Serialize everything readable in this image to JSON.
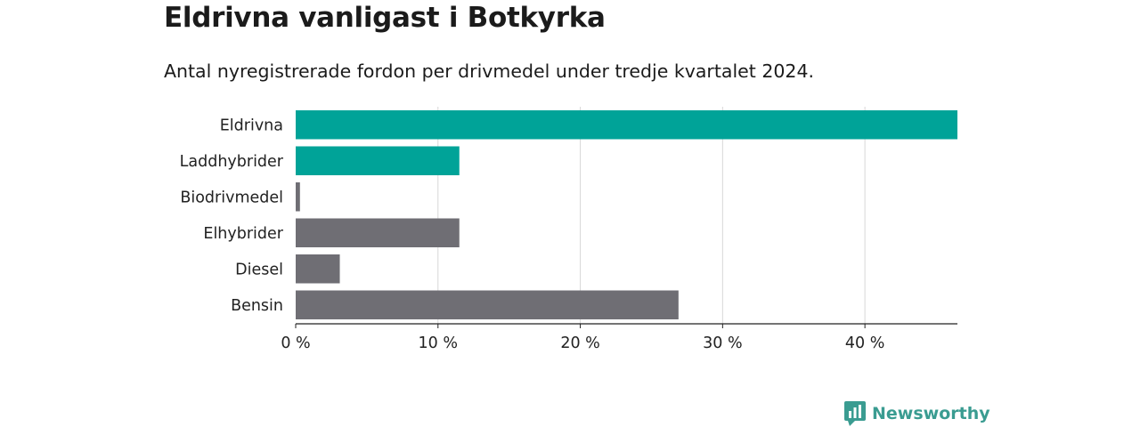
{
  "title": "Eldrivna vanligast i Botkyrka",
  "subtitle": "Antal nyregistrerade fordon per drivmedel under tredje kvartalet 2024.",
  "brand": "Newsworthy",
  "colors": {
    "highlight": "#00a398",
    "default": "#6f6e74",
    "grid": "#d7d7d7",
    "axis": "#222222",
    "brand": "#3a9c91"
  },
  "chart_data": {
    "type": "bar",
    "orientation": "horizontal",
    "categories": [
      "Eldrivna",
      "Laddhybrider",
      "Biodrivmedel",
      "Elhybrider",
      "Diesel",
      "Bensin"
    ],
    "values": [
      46.5,
      11.5,
      0.3,
      11.5,
      3.1,
      26.9
    ],
    "highlighted": [
      true,
      true,
      false,
      false,
      false,
      false
    ],
    "xticks": [
      0,
      10,
      20,
      30,
      40
    ],
    "xtick_labels": [
      "0 %",
      "10 %",
      "20 %",
      "30 %",
      "40 %"
    ],
    "xlim": [
      0,
      46.5
    ],
    "unit": "%"
  }
}
